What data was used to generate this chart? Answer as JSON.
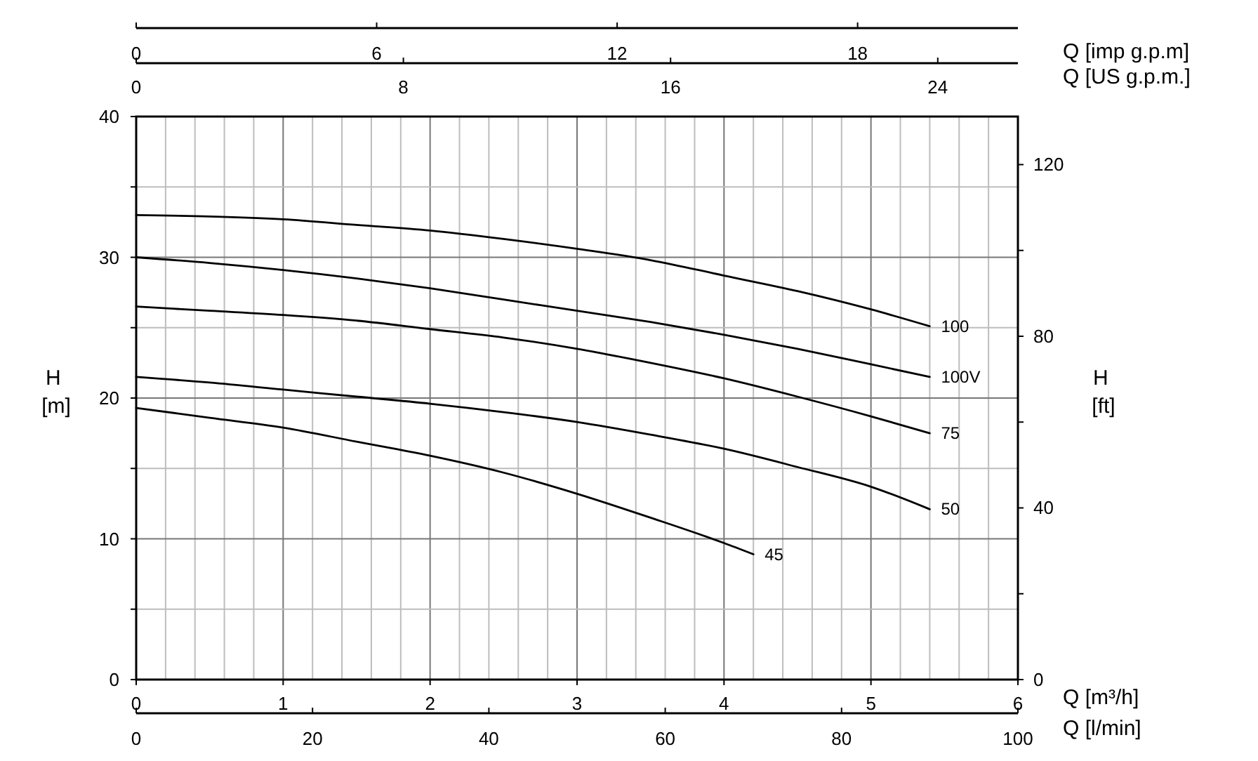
{
  "chart_data": [
    {
      "type": "line",
      "xlabel": "Q [m³/h]",
      "x2label": "Q [imp g.p.m]",
      "ylabel": "H [m]",
      "xlim": [
        0,
        6
      ],
      "xticks": [
        0,
        {
          "value": 0.2,
          "label": null
        },
        {
          "value": 0.4,
          "label": null
        },
        {
          "value": 0.6,
          "label": null
        },
        {
          "value": 0.8,
          "label": null
        },
        1,
        {
          "value": 1.2,
          "label": null
        },
        {
          "value": 1.4,
          "label": null
        },
        {
          "value": 1.6,
          "label": null
        },
        {
          "value": 1.8,
          "label": null
        },
        2,
        {
          "value": 2.2,
          "label": null
        },
        {
          "value": 2.4,
          "label": null
        },
        {
          "value": 2.6,
          "label": null
        },
        {
          "value": 2.8,
          "label": null
        },
        3,
        {
          "value": 3.2,
          "label": null
        },
        {
          "value": 3.4,
          "label": null
        },
        {
          "value": 3.6,
          "label": null
        },
        {
          "value": 3.8,
          "label": null
        },
        4,
        {
          "value": 4.2,
          "label": null
        },
        {
          "value": 4.4,
          "label": null
        },
        {
          "value": 4.6,
          "label": null
        },
        {
          "value": 4.8,
          "label": null
        },
        5,
        {
          "value": 5.2,
          "label": null
        },
        {
          "value": 5.4,
          "label": null
        },
        {
          "value": 5.6,
          "label": null
        },
        {
          "value": 5.8,
          "label": null
        },
        6
      ],
      "x2lim": [
        0,
        22.0
      ],
      "x2ticks": [
        0,
        6,
        12,
        18
      ],
      "ylim": [
        0,
        40
      ],
      "yticks": [
        0,
        {
          "value": 5,
          "label": null
        },
        10,
        {
          "value": 15,
          "label": null
        },
        20,
        {
          "value": 25,
          "label": null
        },
        30,
        {
          "value": 35,
          "label": null
        },
        40
      ],
      "grid": true,
      "series": [
        {
          "name": "100",
          "color": "#000000",
          "x": [
            0,
            0.5,
            1,
            1.5,
            2,
            2.5,
            3,
            3.5,
            4,
            4.5,
            5,
            5.4
          ],
          "values": [
            33.0,
            32.9,
            32.7,
            32.3,
            31.9,
            31.3,
            30.6,
            29.8,
            28.7,
            27.6,
            26.3,
            25.1
          ]
        },
        {
          "name": "100V",
          "color": "#000000",
          "x": [
            0,
            0.5,
            1,
            1.5,
            2,
            2.5,
            3,
            3.5,
            4,
            4.5,
            5,
            5.4
          ],
          "values": [
            30.0,
            29.6,
            29.1,
            28.5,
            27.8,
            27.0,
            26.2,
            25.4,
            24.5,
            23.5,
            22.4,
            21.5
          ]
        },
        {
          "name": "75",
          "color": "#000000",
          "x": [
            0,
            0.5,
            1,
            1.5,
            2,
            2.5,
            3,
            3.5,
            4,
            4.5,
            5,
            5.4
          ],
          "values": [
            26.5,
            26.2,
            25.9,
            25.5,
            24.9,
            24.3,
            23.5,
            22.5,
            21.4,
            20.1,
            18.7,
            17.5
          ]
        },
        {
          "name": "50",
          "color": "#000000",
          "x": [
            0,
            0.5,
            1,
            1.5,
            2,
            2.5,
            3,
            3.5,
            4,
            4.5,
            5,
            5.4
          ],
          "values": [
            21.5,
            21.1,
            20.6,
            20.1,
            19.6,
            19.0,
            18.3,
            17.4,
            16.4,
            15.1,
            13.7,
            12.1
          ]
        },
        {
          "name": "45",
          "color": "#000000",
          "x": [
            0,
            0.5,
            1,
            1.5,
            2,
            2.5,
            3,
            3.5,
            4,
            4.2
          ],
          "values": [
            19.3,
            18.6,
            17.9,
            16.9,
            15.9,
            14.7,
            13.2,
            11.5,
            9.7,
            8.9
          ]
        }
      ]
    },
    {
      "type": "line",
      "xlabel": "Q [l/min]",
      "x2label": "Q [US g.p.m.]",
      "ylabel": "H [ft]",
      "xlim": [
        0,
        100
      ],
      "xticks": [
        0,
        20,
        40,
        60,
        80,
        100
      ],
      "x2lim": [
        0,
        26.4
      ],
      "x2ticks": [
        0,
        8,
        16,
        24
      ],
      "ylim": [
        0,
        131.2
      ],
      "yticks": [
        0,
        {
          "value": 20,
          "label": null
        },
        40,
        {
          "value": 60,
          "label": null
        },
        80,
        {
          "value": 100,
          "label": null
        },
        120
      ]
    }
  ]
}
